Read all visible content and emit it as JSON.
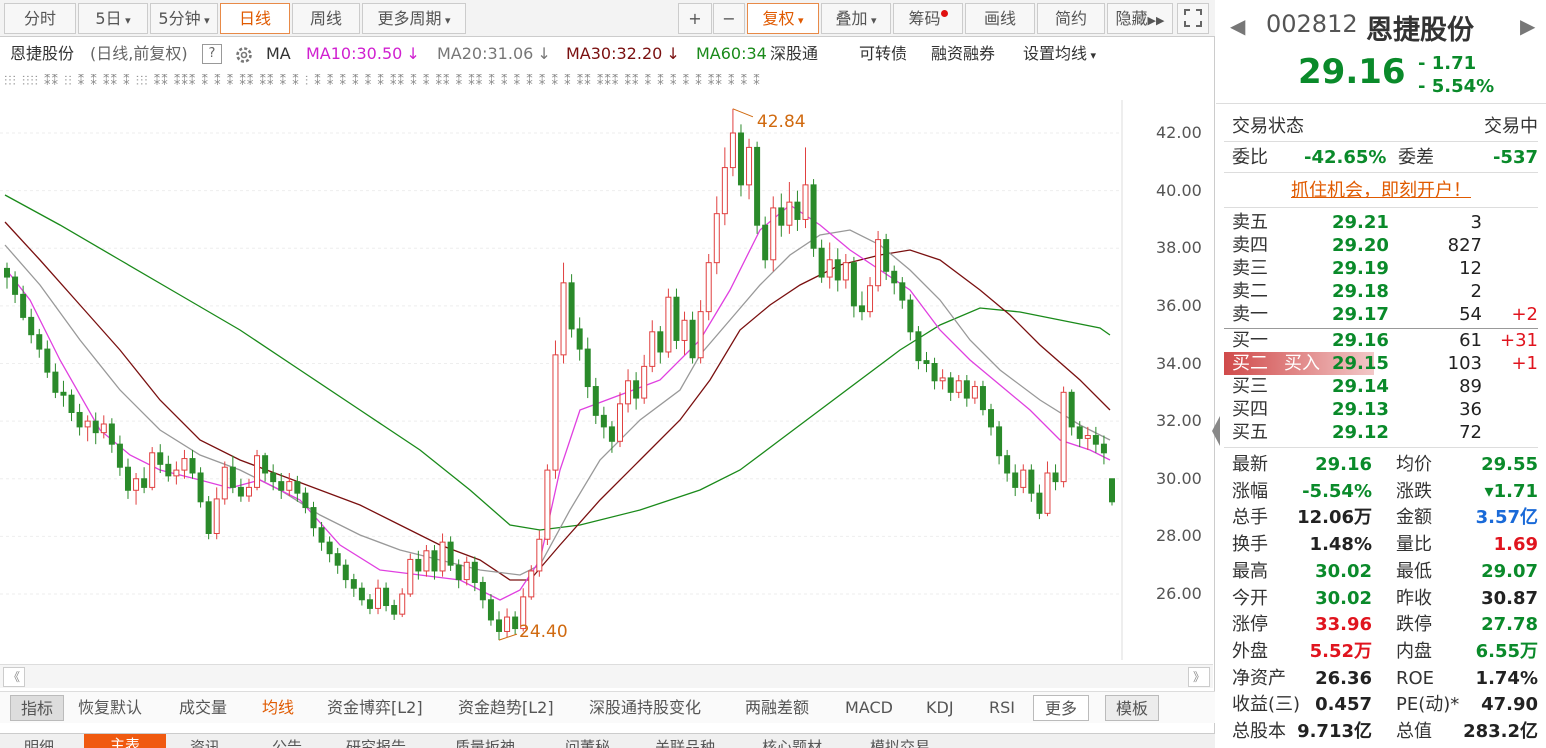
{
  "toolbar": {
    "tabs": [
      "分时",
      "5日",
      "5分钟",
      "日线",
      "周线",
      "更多周期"
    ],
    "tools": [
      "+",
      "−",
      "复权",
      "叠加",
      "筹码",
      "画线",
      "简约",
      "隐藏"
    ],
    "expand_icon": "expand-icon"
  },
  "ma_bar": {
    "name": "恩捷股份",
    "sub": "(日线,前复权)",
    "help": "?",
    "gear_icon": "gear-icon",
    "ma": "MA",
    "ma10": "MA10:30.50",
    "ma20": "MA20:31.06",
    "ma30": "MA30:32.20",
    "ma60": "MA60:34.",
    "down": "↓",
    "links": [
      "深股通",
      "可转债",
      "融资融券",
      "设置均线"
    ]
  },
  "chart_data": {
    "type": "candlestick",
    "y_ticks": [
      "42.00",
      "40.00",
      "38.00",
      "36.00",
      "34.00",
      "32.00",
      "30.00",
      "28.00",
      "26.00"
    ],
    "ylim": [
      24,
      43
    ],
    "high_label": "42.84",
    "low_label": "24.40",
    "colors": {
      "up": "#e04040",
      "down": "#2a8a2a",
      "ma10": "#e040e0",
      "ma20": "#999999",
      "ma30": "#7a1010",
      "ma60": "#1a8a1a"
    },
    "candles": [
      [
        37.3,
        37.0,
        37.5,
        36.6
      ],
      [
        37.0,
        36.4,
        37.2,
        36.1
      ],
      [
        36.4,
        35.6,
        36.7,
        35.5
      ],
      [
        35.6,
        35.0,
        35.9,
        34.7
      ],
      [
        35.0,
        34.5,
        35.2,
        34.2
      ],
      [
        34.5,
        33.7,
        34.8,
        33.5
      ],
      [
        33.7,
        33.0,
        34.0,
        32.8
      ],
      [
        33.0,
        32.9,
        33.4,
        32.5
      ],
      [
        32.9,
        32.3,
        33.1,
        32.0
      ],
      [
        32.3,
        31.8,
        32.6,
        31.5
      ],
      [
        31.8,
        32.0,
        32.2,
        31.3
      ],
      [
        32.0,
        31.6,
        32.3,
        31.2
      ],
      [
        31.6,
        31.9,
        32.2,
        31.4
      ],
      [
        31.9,
        31.2,
        32.1,
        30.9
      ],
      [
        31.2,
        30.4,
        31.5,
        30.1
      ],
      [
        30.4,
        29.6,
        30.7,
        29.3
      ],
      [
        29.6,
        30.0,
        30.2,
        29.1
      ],
      [
        30.0,
        29.7,
        30.4,
        29.5
      ],
      [
        29.7,
        30.9,
        31.1,
        29.6
      ],
      [
        30.9,
        30.5,
        31.2,
        30.2
      ],
      [
        30.5,
        30.1,
        30.8,
        29.9
      ],
      [
        30.1,
        30.3,
        30.6,
        29.8
      ],
      [
        30.3,
        30.7,
        31.0,
        30.0
      ],
      [
        30.7,
        30.2,
        31.0,
        30.0
      ],
      [
        30.2,
        29.2,
        30.4,
        29.0
      ],
      [
        29.2,
        28.1,
        29.4,
        27.9
      ],
      [
        28.1,
        29.3,
        29.7,
        27.9
      ],
      [
        29.3,
        30.4,
        30.6,
        29.1
      ],
      [
        30.4,
        29.7,
        30.8,
        29.5
      ],
      [
        29.7,
        29.4,
        30.0,
        29.2
      ],
      [
        29.4,
        29.7,
        30.0,
        29.2
      ],
      [
        29.7,
        30.8,
        31.0,
        29.6
      ],
      [
        30.8,
        30.2,
        30.9,
        29.9
      ],
      [
        30.2,
        29.9,
        30.5,
        29.6
      ],
      [
        29.9,
        29.6,
        30.2,
        29.3
      ],
      [
        29.6,
        29.9,
        30.2,
        29.4
      ],
      [
        29.9,
        29.5,
        30.1,
        29.2
      ],
      [
        29.5,
        29.0,
        29.7,
        28.8
      ],
      [
        29.0,
        28.3,
        29.2,
        28.0
      ],
      [
        28.3,
        27.8,
        28.5,
        27.5
      ],
      [
        27.8,
        27.4,
        28.0,
        27.1
      ],
      [
        27.4,
        27.0,
        27.6,
        26.7
      ],
      [
        27.0,
        26.5,
        27.2,
        26.2
      ],
      [
        26.5,
        26.2,
        26.7,
        25.9
      ],
      [
        26.2,
        25.8,
        26.4,
        25.6
      ],
      [
        25.8,
        25.5,
        26.0,
        25.3
      ],
      [
        25.5,
        26.2,
        26.5,
        25.3
      ],
      [
        26.2,
        25.6,
        26.4,
        25.4
      ],
      [
        25.6,
        25.3,
        25.8,
        25.1
      ],
      [
        25.3,
        26.0,
        26.2,
        25.2
      ],
      [
        26.0,
        27.2,
        27.4,
        25.9
      ],
      [
        27.2,
        26.8,
        27.5,
        26.5
      ],
      [
        26.8,
        27.5,
        27.7,
        26.6
      ],
      [
        27.5,
        26.8,
        27.7,
        26.5
      ],
      [
        26.8,
        27.8,
        28.1,
        26.6
      ],
      [
        27.8,
        27.0,
        28.0,
        26.8
      ],
      [
        27.0,
        26.5,
        27.2,
        26.2
      ],
      [
        26.5,
        27.1,
        27.3,
        26.3
      ],
      [
        27.1,
        26.4,
        27.3,
        26.1
      ],
      [
        26.4,
        25.8,
        26.6,
        25.5
      ],
      [
        25.8,
        25.1,
        26.0,
        24.9
      ],
      [
        25.1,
        24.7,
        25.4,
        24.4
      ],
      [
        24.7,
        25.2,
        25.5,
        24.5
      ],
      [
        25.2,
        24.8,
        25.4,
        24.6
      ],
      [
        24.8,
        25.9,
        26.2,
        24.7
      ],
      [
        25.9,
        26.8,
        27.0,
        25.8
      ],
      [
        26.8,
        27.9,
        28.2,
        26.6
      ],
      [
        27.9,
        30.3,
        30.5,
        27.7
      ],
      [
        30.3,
        34.3,
        34.8,
        30.0
      ],
      [
        34.3,
        36.8,
        37.5,
        34.0
      ],
      [
        36.8,
        35.2,
        37.1,
        34.9
      ],
      [
        35.2,
        34.5,
        35.6,
        34.1
      ],
      [
        34.5,
        33.2,
        34.9,
        32.8
      ],
      [
        33.2,
        32.2,
        33.5,
        31.9
      ],
      [
        32.2,
        31.8,
        32.5,
        31.4
      ],
      [
        31.8,
        31.3,
        32.0,
        30.9
      ],
      [
        31.3,
        32.6,
        33.0,
        31.1
      ],
      [
        32.6,
        33.4,
        33.8,
        32.3
      ],
      [
        33.4,
        32.8,
        33.7,
        32.4
      ],
      [
        32.8,
        33.9,
        34.3,
        32.6
      ],
      [
        33.9,
        35.1,
        35.5,
        33.7
      ],
      [
        35.1,
        34.4,
        35.3,
        34.0
      ],
      [
        34.4,
        36.3,
        36.6,
        34.2
      ],
      [
        36.3,
        34.8,
        36.6,
        34.5
      ],
      [
        34.8,
        35.5,
        35.8,
        34.3
      ],
      [
        35.5,
        34.2,
        35.8,
        34.0
      ],
      [
        34.2,
        35.8,
        36.2,
        34.0
      ],
      [
        35.8,
        37.5,
        37.8,
        35.5
      ],
      [
        37.5,
        39.2,
        39.8,
        37.1
      ],
      [
        39.2,
        40.8,
        41.5,
        38.8
      ],
      [
        40.8,
        42.0,
        42.84,
        40.5
      ],
      [
        42.0,
        40.2,
        42.3,
        39.8
      ],
      [
        40.2,
        41.5,
        41.8,
        39.7
      ],
      [
        41.5,
        38.8,
        41.7,
        38.5
      ],
      [
        38.8,
        37.6,
        39.1,
        37.3
      ],
      [
        37.6,
        39.4,
        39.8,
        37.2
      ],
      [
        39.4,
        38.8,
        39.9,
        38.4
      ],
      [
        38.8,
        39.6,
        40.3,
        38.5
      ],
      [
        39.6,
        39.0,
        40.0,
        38.6
      ],
      [
        39.0,
        40.2,
        41.5,
        38.7
      ],
      [
        40.2,
        38.0,
        40.4,
        37.7
      ],
      [
        38.0,
        37.0,
        38.3,
        36.8
      ],
      [
        37.0,
        37.6,
        38.2,
        36.6
      ],
      [
        37.6,
        36.9,
        38.0,
        36.5
      ],
      [
        36.9,
        37.5,
        37.8,
        36.6
      ],
      [
        37.5,
        36.0,
        37.7,
        35.6
      ],
      [
        36.0,
        35.8,
        36.5,
        35.5
      ],
      [
        35.8,
        36.7,
        37.0,
        35.6
      ],
      [
        36.7,
        38.3,
        38.6,
        36.5
      ],
      [
        38.3,
        37.2,
        38.5,
        36.9
      ],
      [
        37.2,
        36.8,
        37.4,
        36.4
      ],
      [
        36.8,
        36.2,
        37.0,
        35.9
      ],
      [
        36.2,
        35.1,
        36.4,
        34.8
      ],
      [
        35.1,
        34.1,
        35.3,
        33.8
      ],
      [
        34.1,
        34.0,
        34.4,
        33.7
      ],
      [
        34.0,
        33.4,
        34.2,
        33.1
      ],
      [
        33.4,
        33.5,
        33.8,
        33.1
      ],
      [
        33.5,
        33.0,
        33.7,
        32.7
      ],
      [
        33.0,
        33.4,
        33.6,
        32.8
      ],
      [
        33.4,
        32.8,
        33.6,
        32.5
      ],
      [
        32.8,
        33.2,
        33.4,
        32.6
      ],
      [
        33.2,
        32.4,
        33.4,
        32.2
      ],
      [
        32.4,
        31.8,
        32.6,
        31.5
      ],
      [
        31.8,
        30.8,
        32.0,
        30.5
      ],
      [
        30.8,
        30.2,
        31.0,
        29.9
      ],
      [
        30.2,
        29.7,
        30.5,
        29.4
      ],
      [
        29.7,
        30.3,
        30.5,
        29.5
      ],
      [
        30.3,
        29.5,
        30.5,
        29.2
      ],
      [
        29.5,
        28.8,
        29.8,
        28.6
      ],
      [
        28.8,
        30.2,
        30.6,
        28.7
      ],
      [
        30.2,
        29.9,
        30.5,
        29.6
      ],
      [
        29.9,
        33.0,
        33.2,
        29.7
      ],
      [
        33.0,
        31.8,
        33.1,
        31.5
      ],
      [
        31.8,
        31.4,
        32.0,
        31.1
      ],
      [
        31.4,
        31.5,
        31.8,
        31.0
      ],
      [
        31.5,
        31.2,
        31.8,
        30.9
      ],
      [
        31.2,
        30.9,
        31.5,
        30.5
      ],
      [
        30.0,
        29.2,
        30.0,
        29.07
      ]
    ],
    "ma10_points": [
      [
        5,
        268
      ],
      [
        30,
        300
      ],
      [
        60,
        360
      ],
      [
        100,
        430
      ],
      [
        130,
        455
      ],
      [
        160,
        470
      ],
      [
        200,
        480
      ],
      [
        230,
        488
      ],
      [
        260,
        480
      ],
      [
        300,
        500
      ],
      [
        340,
        545
      ],
      [
        380,
        570
      ],
      [
        420,
        575
      ],
      [
        460,
        580
      ],
      [
        500,
        600
      ],
      [
        520,
        590
      ],
      [
        540,
        560
      ],
      [
        560,
        470
      ],
      [
        580,
        410
      ],
      [
        620,
        395
      ],
      [
        660,
        380
      ],
      [
        700,
        340
      ],
      [
        730,
        290
      ],
      [
        760,
        230
      ],
      [
        790,
        205
      ],
      [
        820,
        225
      ],
      [
        850,
        250
      ],
      [
        880,
        270
      ],
      [
        910,
        290
      ],
      [
        940,
        330
      ],
      [
        970,
        360
      ],
      [
        1000,
        385
      ],
      [
        1030,
        410
      ],
      [
        1060,
        440
      ],
      [
        1090,
        450
      ],
      [
        1110,
        460
      ]
    ],
    "ma20_points": [
      [
        5,
        245
      ],
      [
        40,
        285
      ],
      [
        80,
        340
      ],
      [
        120,
        390
      ],
      [
        160,
        430
      ],
      [
        200,
        455
      ],
      [
        240,
        470
      ],
      [
        280,
        490
      ],
      [
        320,
        515
      ],
      [
        360,
        535
      ],
      [
        400,
        550
      ],
      [
        440,
        560
      ],
      [
        480,
        570
      ],
      [
        520,
        575
      ],
      [
        540,
        565
      ],
      [
        570,
        510
      ],
      [
        600,
        460
      ],
      [
        640,
        420
      ],
      [
        680,
        390
      ],
      [
        700,
        355
      ],
      [
        730,
        320
      ],
      [
        760,
        285
      ],
      [
        790,
        255
      ],
      [
        820,
        235
      ],
      [
        850,
        230
      ],
      [
        880,
        245
      ],
      [
        910,
        270
      ],
      [
        940,
        300
      ],
      [
        970,
        340
      ],
      [
        1000,
        370
      ],
      [
        1040,
        400
      ],
      [
        1080,
        425
      ],
      [
        1110,
        440
      ]
    ],
    "ma30_points": [
      [
        5,
        222
      ],
      [
        40,
        260
      ],
      [
        80,
        305
      ],
      [
        120,
        350
      ],
      [
        160,
        400
      ],
      [
        200,
        440
      ],
      [
        240,
        460
      ],
      [
        280,
        475
      ],
      [
        320,
        490
      ],
      [
        360,
        505
      ],
      [
        400,
        525
      ],
      [
        440,
        545
      ],
      [
        480,
        560
      ],
      [
        510,
        580
      ],
      [
        530,
        580
      ],
      [
        560,
        545
      ],
      [
        600,
        500
      ],
      [
        640,
        460
      ],
      [
        680,
        420
      ],
      [
        710,
        380
      ],
      [
        740,
        330
      ],
      [
        770,
        305
      ],
      [
        800,
        285
      ],
      [
        840,
        265
      ],
      [
        880,
        255
      ],
      [
        910,
        250
      ],
      [
        940,
        260
      ],
      [
        980,
        290
      ],
      [
        1010,
        315
      ],
      [
        1040,
        345
      ],
      [
        1080,
        380
      ],
      [
        1110,
        410
      ]
    ],
    "ma60_points": [
      [
        5,
        195
      ],
      [
        60,
        225
      ],
      [
        120,
        260
      ],
      [
        180,
        295
      ],
      [
        240,
        330
      ],
      [
        300,
        370
      ],
      [
        360,
        410
      ],
      [
        420,
        450
      ],
      [
        470,
        490
      ],
      [
        510,
        525
      ],
      [
        540,
        530
      ],
      [
        580,
        525
      ],
      [
        640,
        510
      ],
      [
        700,
        490
      ],
      [
        740,
        470
      ],
      [
        780,
        440
      ],
      [
        820,
        410
      ],
      [
        860,
        380
      ],
      [
        900,
        350
      ],
      [
        940,
        325
      ],
      [
        980,
        308
      ],
      [
        1020,
        312
      ],
      [
        1060,
        320
      ],
      [
        1100,
        328
      ],
      [
        1110,
        335
      ]
    ]
  },
  "scrollbar": {
    "left": "《",
    "right": "》"
  },
  "indicator_tabs": [
    "指标",
    "恢复默认",
    "成交量",
    "均线",
    "资金博弈[L2]",
    "资金趋势[L2]",
    "深股通持股变化",
    "两融差额",
    "MACD",
    "KDJ",
    "RSI",
    "更多",
    "模板"
  ],
  "bottom_tabs": [
    "明细",
    "主表",
    "资讯",
    "公告",
    "研究报告",
    "质量扳神",
    "问董秘",
    "关联品种",
    "核心题材",
    "模拟交易"
  ],
  "quote": {
    "code": "002812",
    "name": "恩捷股份",
    "price": "29.16",
    "change": "- 1.71",
    "change_pct": "- 5.54%",
    "status_label": "交易状态",
    "status_value": "交易中",
    "weibi_label": "委比",
    "weibi": "-42.65%",
    "weicha_label": "委差",
    "weicha": "-537",
    "promo": "抓住机会，即刻开户！",
    "asks": [
      {
        "label": "卖五",
        "price": "29.21",
        "vol": "3",
        "chg": ""
      },
      {
        "label": "卖四",
        "price": "29.20",
        "vol": "827",
        "chg": ""
      },
      {
        "label": "卖三",
        "price": "29.19",
        "vol": "12",
        "chg": ""
      },
      {
        "label": "卖二",
        "price": "29.18",
        "vol": "2",
        "chg": ""
      },
      {
        "label": "卖一",
        "price": "29.17",
        "vol": "54",
        "chg": "+2"
      }
    ],
    "bids": [
      {
        "label": "买一",
        "price": "29.16",
        "vol": "61",
        "chg": "+31"
      },
      {
        "label": "买二",
        "price": "29.15",
        "vol": "103",
        "chg": "+1"
      },
      {
        "label": "买三",
        "price": "29.14",
        "vol": "89",
        "chg": ""
      },
      {
        "label": "买四",
        "price": "29.13",
        "vol": "36",
        "chg": ""
      },
      {
        "label": "买五",
        "price": "29.12",
        "vol": "72",
        "chg": ""
      }
    ],
    "buy_button": "买入",
    "stats": [
      [
        "最新",
        "29.16",
        "g",
        "均价",
        "29.55",
        "g"
      ],
      [
        "涨幅",
        "-5.54%",
        "g",
        "涨跌",
        "▾1.71",
        "g"
      ],
      [
        "总手",
        "12.06万",
        "blk",
        "金额",
        "3.57亿",
        "b"
      ],
      [
        "换手",
        "1.48%",
        "blk",
        "量比",
        "1.69",
        "r"
      ],
      [
        "最高",
        "30.02",
        "g",
        "最低",
        "29.07",
        "g"
      ],
      [
        "今开",
        "30.02",
        "g",
        "昨收",
        "30.87",
        "blk"
      ],
      [
        "涨停",
        "33.96",
        "r",
        "跌停",
        "27.78",
        "g"
      ],
      [
        "外盘",
        "5.52万",
        "r",
        "内盘",
        "6.55万",
        "g"
      ],
      [
        "净资产",
        "26.36",
        "blk",
        "ROE",
        "1.74%",
        "blk"
      ],
      [
        "收益(三)",
        "0.457",
        "blk",
        "PE(动)*",
        "47.90",
        "blk"
      ],
      [
        "总股本",
        "9.713亿",
        "blk",
        "总值",
        "283.2亿",
        "blk"
      ]
    ]
  }
}
